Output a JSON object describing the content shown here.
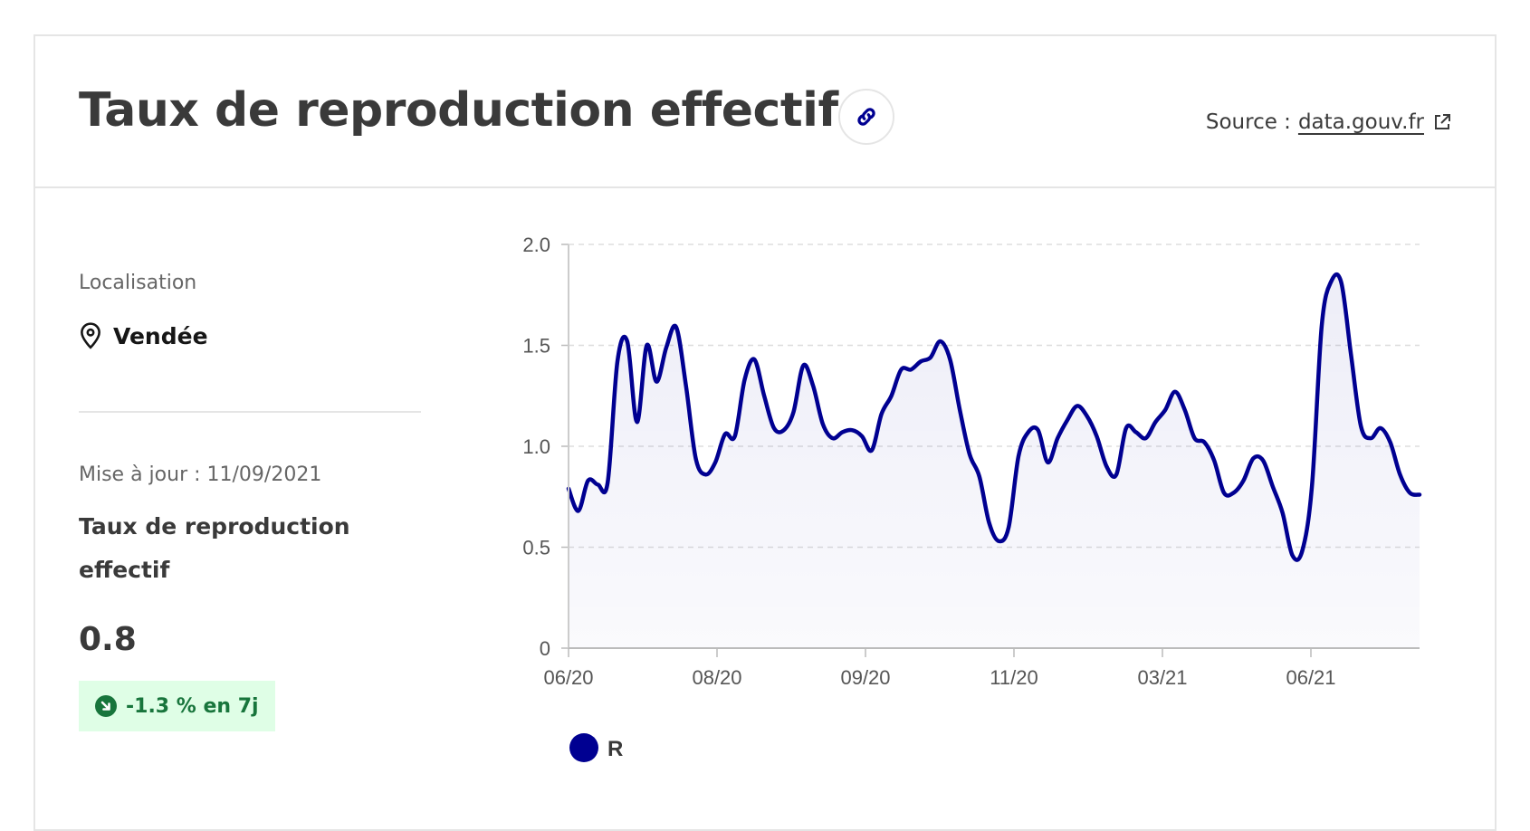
{
  "header": {
    "title": "Taux de reproduction effectif",
    "source_label": "Source :",
    "source_link": "data.gouv.fr",
    "link_icon": "link-icon",
    "external_icon": "external-link-icon"
  },
  "sidebar": {
    "location_label": "Localisation",
    "location_value": "Vendée",
    "location_icon": "map-pin-icon",
    "update_label": "Mise à jour : 11/09/2021",
    "metric_name": "Taux de reproduction effectif",
    "metric_value": "0.8",
    "trend_text": "-1.3 % en 7j",
    "trend_icon": "arrow-down-right-icon",
    "trend_color": "#18753c"
  },
  "chart_data": {
    "type": "area",
    "title": "",
    "xlabel": "",
    "ylabel": "",
    "ylim": [
      0,
      2.0
    ],
    "y_ticks": [
      "0",
      "0.5",
      "1.0",
      "1.5",
      "2.0"
    ],
    "x_ticks": [
      "06/20",
      "08/20",
      "09/20",
      "11/20",
      "03/21",
      "06/21"
    ],
    "grid": true,
    "legend_position": "bottom-left",
    "series": [
      {
        "name": "R",
        "color": "#000091",
        "values": [
          0.79,
          0.68,
          0.83,
          0.81,
          0.82,
          1.42,
          1.52,
          1.12,
          1.5,
          1.32,
          1.49,
          1.59,
          1.3,
          0.94,
          0.86,
          0.92,
          1.06,
          1.05,
          1.33,
          1.43,
          1.25,
          1.09,
          1.08,
          1.17,
          1.4,
          1.3,
          1.11,
          1.04,
          1.07,
          1.08,
          1.05,
          0.98,
          1.16,
          1.25,
          1.38,
          1.38,
          1.42,
          1.44,
          1.52,
          1.43,
          1.18,
          0.96,
          0.85,
          0.62,
          0.53,
          0.6,
          0.95,
          1.07,
          1.08,
          0.92,
          1.04,
          1.13,
          1.2,
          1.15,
          1.05,
          0.9,
          0.86,
          1.09,
          1.07,
          1.04,
          1.12,
          1.18,
          1.27,
          1.18,
          1.04,
          1.02,
          0.93,
          0.77,
          0.77,
          0.83,
          0.94,
          0.93,
          0.8,
          0.67,
          0.46,
          0.48,
          0.8,
          1.6,
          1.82,
          1.81,
          1.45,
          1.1,
          1.04,
          1.09,
          1.02,
          0.86,
          0.77,
          0.76
        ]
      }
    ]
  }
}
